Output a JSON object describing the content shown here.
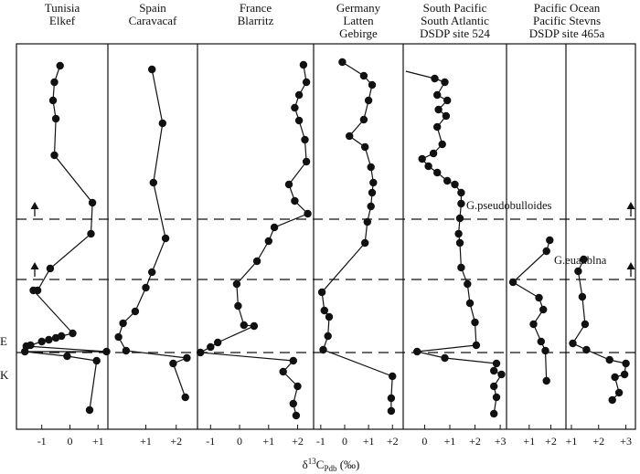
{
  "chart_data": {
    "type": "line",
    "panels": [
      {
        "title": [
          "Tunisia",
          "Elkef"
        ],
        "ticks": [
          "-1",
          "0",
          "+1"
        ],
        "tick_values": [
          -1,
          0,
          1
        ],
        "xlim": [
          -1.9,
          1.35
        ],
        "points": [
          [
            -0.35,
            72
          ],
          [
            -0.55,
            90
          ],
          [
            -0.6,
            110
          ],
          [
            -0.5,
            130
          ],
          [
            -0.55,
            170
          ],
          [
            0.8,
            222
          ],
          [
            0.75,
            256
          ],
          [
            -0.7,
            294
          ],
          [
            -1.15,
            318
          ],
          [
            -1.3,
            318
          ],
          [
            0.1,
            365
          ],
          [
            -0.3,
            368
          ],
          [
            -0.5,
            370
          ],
          [
            -0.75,
            372
          ],
          [
            -1.0,
            374
          ],
          [
            -1.4,
            378
          ],
          [
            -1.55,
            379
          ],
          [
            1.3,
            385
          ],
          [
            -1.6,
            385
          ],
          [
            -0.1,
            390
          ],
          [
            0.95,
            395
          ],
          [
            0.7,
            449
          ]
        ]
      },
      {
        "title": [
          "Spain",
          "Caravacaf"
        ],
        "ticks": [
          "+1",
          "+2"
        ],
        "tick_values": [
          1,
          2
        ],
        "xlim": [
          -0.25,
          2.7
        ],
        "points": [
          [
            1.2,
            76
          ],
          [
            1.55,
            135
          ],
          [
            1.25,
            200
          ],
          [
            1.65,
            261
          ],
          [
            1.2,
            298
          ],
          [
            1.0,
            315
          ],
          [
            0.65,
            341
          ],
          [
            0.25,
            354
          ],
          [
            0.1,
            369
          ],
          [
            0.35,
            384
          ],
          [
            2.35,
            392
          ],
          [
            1.9,
            398
          ],
          [
            2.3,
            435
          ]
        ]
      },
      {
        "title": [
          "France",
          "Blarritz"
        ],
        "ticks": [
          "-1",
          "0",
          "+1",
          "+2"
        ],
        "tick_values": [
          -1,
          0,
          1,
          2
        ],
        "xlim": [
          -1.45,
          2.55
        ],
        "points": [
          [
            2.2,
            71
          ],
          [
            2.3,
            90
          ],
          [
            2.05,
            104
          ],
          [
            1.9,
            118
          ],
          [
            2.05,
            132
          ],
          [
            2.25,
            153
          ],
          [
            2.3,
            177
          ],
          [
            1.7,
            202
          ],
          [
            1.9,
            220
          ],
          [
            2.35,
            234
          ],
          [
            1.2,
            249
          ],
          [
            1.0,
            264
          ],
          [
            0.6,
            286
          ],
          [
            -0.1,
            311
          ],
          [
            -0.05,
            335
          ],
          [
            0.15,
            356
          ],
          [
            0.5,
            357
          ],
          [
            -0.75,
            375
          ],
          [
            -1.0,
            380
          ],
          [
            -1.35,
            386
          ],
          [
            1.85,
            395
          ],
          [
            1.5,
            407
          ],
          [
            2.0,
            423
          ],
          [
            1.85,
            442
          ],
          [
            1.95,
            455
          ]
        ]
      },
      {
        "title": [
          "Germany",
          "Latten",
          "Gebirge"
        ],
        "ticks": [
          "-1",
          "0",
          "+1",
          "+2"
        ],
        "tick_values": [
          -1,
          0,
          1,
          2
        ],
        "xlim": [
          -1.3,
          2.45
        ],
        "points": [
          [
            -0.1,
            68
          ],
          [
            0.8,
            83
          ],
          [
            1.15,
            93
          ],
          [
            1.0,
            110
          ],
          [
            0.8,
            131
          ],
          [
            0.2,
            149
          ],
          [
            0.85,
            161
          ],
          [
            1.1,
            183
          ],
          [
            1.2,
            200
          ],
          [
            1.15,
            211
          ],
          [
            1.1,
            226
          ],
          [
            0.95,
            243
          ],
          [
            0.85,
            266
          ],
          [
            -0.95,
            320
          ],
          [
            -0.85,
            340
          ],
          [
            -0.65,
            347
          ],
          [
            -0.7,
            368
          ],
          [
            -0.9,
            383
          ],
          [
            2.0,
            412
          ],
          [
            1.95,
            436
          ],
          [
            1.95,
            450
          ]
        ]
      },
      {
        "title": [
          "South Pacific",
          "South Atlantic",
          "DSDP site 524"
        ],
        "ticks": [
          "0",
          "+1",
          "+2",
          "+3"
        ],
        "tick_values": [
          0,
          1,
          2,
          3
        ],
        "xlim": [
          -0.85,
          3.25
        ],
        "points": [
          [
            -0.75,
            78
          ],
          [
            0.4,
            86
          ],
          [
            0.8,
            90
          ],
          [
            0.5,
            104
          ],
          [
            0.9,
            110
          ],
          [
            0.55,
            120
          ],
          [
            0.85,
            127
          ],
          [
            0.5,
            139
          ],
          [
            0.7,
            158
          ],
          [
            0.35,
            168
          ],
          [
            -0.1,
            174
          ],
          [
            0.15,
            182
          ],
          [
            0.5,
            189
          ],
          [
            0.9,
            198
          ],
          [
            1.2,
            202
          ],
          [
            1.45,
            211
          ],
          [
            1.45,
            223
          ],
          [
            1.4,
            239
          ],
          [
            1.35,
            256
          ],
          [
            1.4,
            266
          ],
          [
            1.45,
            293
          ],
          [
            1.7,
            311
          ],
          [
            1.8,
            332
          ],
          [
            2.0,
            353
          ],
          [
            2.05,
            378
          ],
          [
            -0.3,
            385
          ],
          [
            0.8,
            392
          ],
          [
            2.85,
            398
          ],
          [
            2.75,
            406
          ],
          [
            3.05,
            410
          ],
          [
            2.75,
            423
          ],
          [
            2.85,
            435
          ],
          [
            2.75,
            453
          ]
        ]
      },
      {
        "title": [
          "Pacific Ocean"
        ],
        "ticks": [
          "+1",
          "+2"
        ],
        "tick_values": [
          1,
          2
        ],
        "xlim": [
          -0.05,
          2.7
        ],
        "points": [
          [
            1.95,
            263
          ],
          [
            1.8,
            275
          ],
          [
            0.25,
            309
          ],
          [
            1.45,
            326
          ],
          [
            1.65,
            339
          ],
          [
            1.2,
            355
          ],
          [
            1.55,
            374
          ],
          [
            1.75,
            384
          ],
          [
            1.8,
            417
          ]
        ]
      },
      {
        "title": [
          "Pacific Stevns",
          "DSDP site 465a"
        ],
        "ticks": [
          "+1",
          "+2",
          "+3"
        ],
        "tick_values": [
          1,
          2,
          3
        ],
        "xlim": [
          0.8,
          3.35
        ],
        "points": [
          [
            1.45,
            284
          ],
          [
            1.25,
            297
          ],
          [
            1.4,
            325
          ],
          [
            1.5,
            355
          ],
          [
            1.05,
            376
          ],
          [
            1.55,
            383
          ],
          [
            2.4,
            394
          ],
          [
            3.0,
            398
          ],
          [
            2.95,
            410
          ],
          [
            2.6,
            413
          ],
          [
            2.75,
            430
          ],
          [
            2.5,
            438
          ]
        ]
      }
    ],
    "boundaries": [
      {
        "label": "G.pseudobulloides",
        "arrows": [
          0,
          6
        ]
      },
      {
        "label": "G.euaublna",
        "arrows": [
          0,
          6
        ]
      },
      {
        "label": "",
        "arrows": []
      }
    ],
    "side_labels": [
      "E",
      "K"
    ],
    "xlabel": "δ13CPdb (‰)"
  },
  "annotations": {
    "g_pseudo": "G.pseudobulloides",
    "g_euaublna": "G.euaublna"
  },
  "axis": {
    "xlabel_prefix": "δ",
    "xlabel_sup": "13",
    "xlabel_main": "C",
    "xlabel_sub": "Pdb",
    "xlabel_suffix": " (‰)"
  }
}
